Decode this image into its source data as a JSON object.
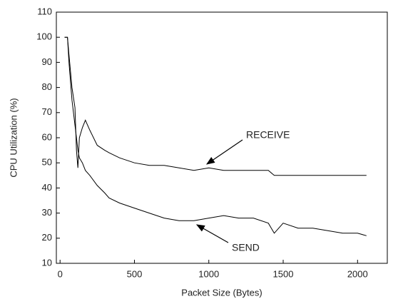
{
  "chart_data": {
    "type": "line",
    "xlabel": "Packet Size (Bytes)",
    "ylabel": "CPU Utilization (%)",
    "x": [
      30,
      50,
      60,
      80,
      100,
      110,
      120,
      130,
      150,
      170,
      200,
      250,
      300,
      330,
      400,
      500,
      600,
      700,
      800,
      900,
      1000,
      1100,
      1200,
      1300,
      1400,
      1440,
      1500,
      1600,
      1700,
      1800,
      1900,
      2000,
      2060
    ],
    "series": [
      {
        "name": "RECEIVE",
        "color": "#000000",
        "values": [
          100,
          100,
          93,
          80,
          72,
          55,
          48,
          60,
          64,
          67,
          63,
          57,
          55,
          54,
          52,
          50,
          49,
          49,
          48,
          47,
          48,
          47,
          47,
          47,
          47,
          45,
          45,
          45,
          45,
          45,
          45,
          45,
          45
        ]
      },
      {
        "name": "SEND",
        "color": "#000000",
        "values": [
          100,
          100,
          90,
          75,
          65,
          60,
          55,
          52,
          50,
          47,
          45,
          41,
          38,
          36,
          34,
          32,
          30,
          28,
          27,
          27,
          28,
          29,
          28,
          28,
          26,
          22,
          26,
          24,
          24,
          23,
          22,
          22,
          21
        ]
      }
    ],
    "xlim": [
      -25,
      2200
    ],
    "ylim": [
      10,
      110
    ],
    "xticks": [
      0,
      500,
      1000,
      1500,
      2000
    ],
    "yticks": [
      10,
      20,
      30,
      40,
      50,
      60,
      70,
      80,
      90,
      100,
      110
    ],
    "grid": false
  }
}
